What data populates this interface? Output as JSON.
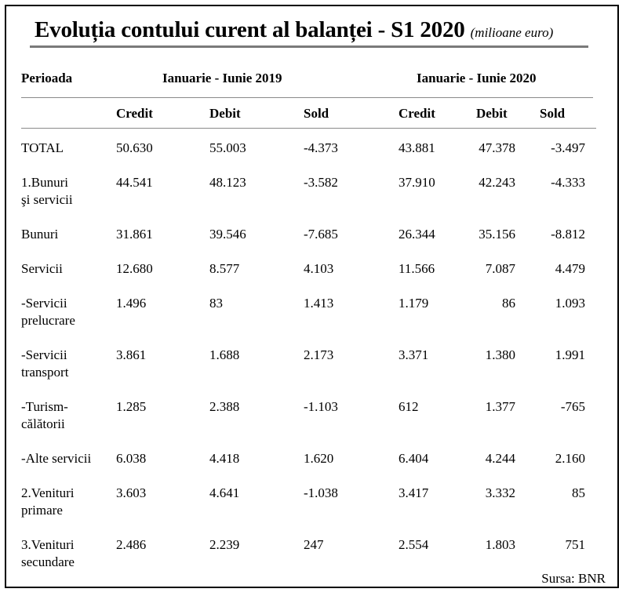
{
  "title": "Evoluția contului curent al balanței - S1 2020",
  "unit": "(milioane euro)",
  "header": {
    "period_label": "Perioada",
    "period_2019": "Ianuarie - Iunie 2019",
    "period_2020": "Ianuarie - Iunie 2020",
    "columns": [
      "Credit",
      "Debit",
      "Sold",
      "Credit",
      "Debit",
      "Sold"
    ]
  },
  "rows": [
    {
      "label": "TOTAL",
      "values": [
        "50.630",
        "55.003",
        "-4.373",
        "43.881",
        "47.378",
        "-3.497"
      ]
    },
    {
      "label": "1.Bunuri\nşi servicii",
      "values": [
        "44.541",
        "48.123",
        "-3.582",
        "37.910",
        "42.243",
        "-4.333"
      ]
    },
    {
      "label": "Bunuri",
      "values": [
        "31.861",
        "39.546",
        "-7.685",
        "26.344",
        "35.156",
        "-8.812"
      ]
    },
    {
      "label": "Servicii",
      "values": [
        "12.680",
        "8.577",
        "4.103",
        "11.566",
        "7.087",
        "4.479"
      ]
    },
    {
      "label": "-Servicii\nprelucrare",
      "values": [
        "1.496",
        "83",
        "1.413",
        "1.179",
        "86",
        "1.093"
      ]
    },
    {
      "label": "-Servicii\ntransport",
      "values": [
        "3.861",
        "1.688",
        "2.173",
        "3.371",
        "1.380",
        "1.991"
      ]
    },
    {
      "label": "-Turism-\ncălătorii",
      "values": [
        "1.285",
        "2.388",
        "-1.103",
        "612",
        "1.377",
        "-765"
      ]
    },
    {
      "label": "-Alte servicii",
      "values": [
        "6.038",
        "4.418",
        "1.620",
        "6.404",
        "4.244",
        "2.160"
      ]
    },
    {
      "label": "2.Venituri\nprimare",
      "values": [
        "3.603",
        "4.641",
        "-1.038",
        "3.417",
        "3.332",
        "85"
      ]
    },
    {
      "label": "3.Venituri\nsecundare",
      "values": [
        "2.486",
        "2.239",
        "247",
        "2.554",
        "1.803",
        "751"
      ]
    }
  ],
  "source": "Sursa: BNR"
}
